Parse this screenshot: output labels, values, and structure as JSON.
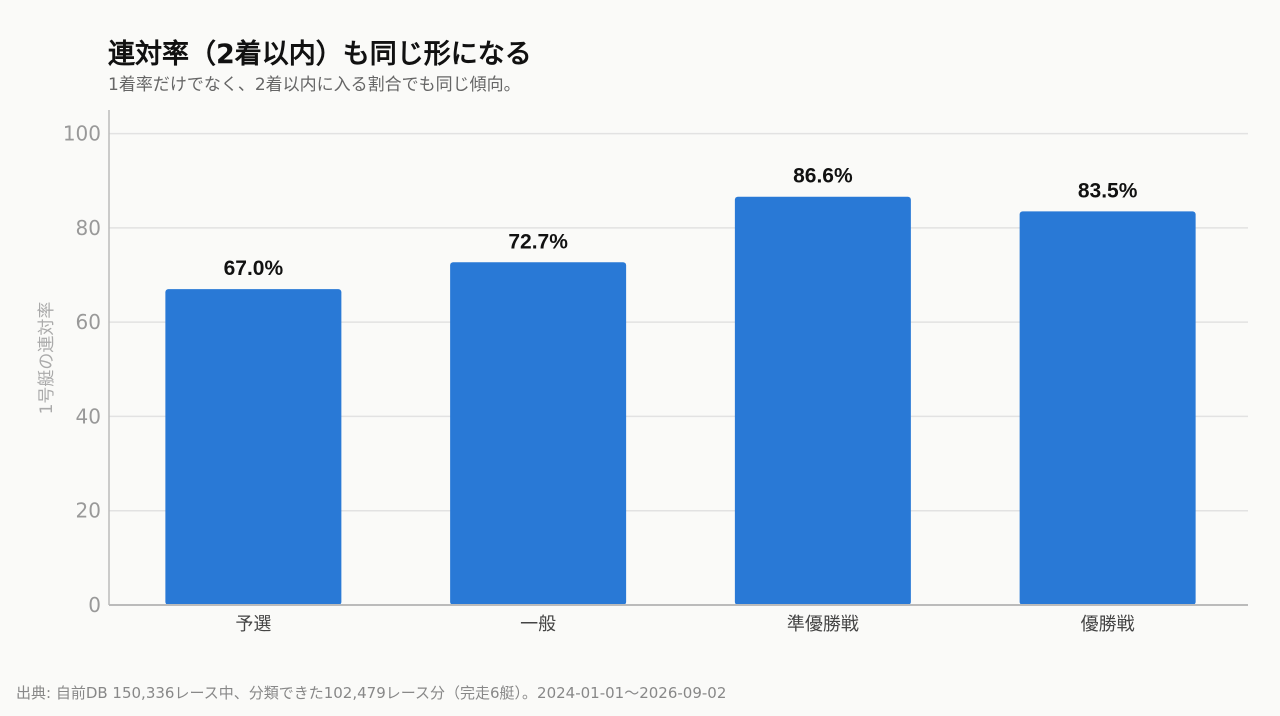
{
  "chart_data": {
    "type": "bar",
    "title": "連対率（2着以内）も同じ形になる",
    "subtitle": "1着率だけでなく、2着以内に入る割合でも同じ傾向。",
    "xlabel": "",
    "ylabel": "1号艇の連対率",
    "categories": [
      "予選",
      "一般",
      "準優勝戦",
      "優勝戦"
    ],
    "values": [
      67.0,
      72.7,
      86.6,
      83.5
    ],
    "value_labels": [
      "67.0%",
      "72.7%",
      "86.6%",
      "83.5%"
    ],
    "ylim": [
      0,
      100
    ],
    "yticks": [
      0,
      20,
      40,
      60,
      80,
      100
    ],
    "grid": true,
    "bar_color": "#2979d6"
  },
  "source": "出典: 自前DB 150,336レース中、分類できた102,479レース分（完走6艇）。2024-01-01〜2026-09-02"
}
